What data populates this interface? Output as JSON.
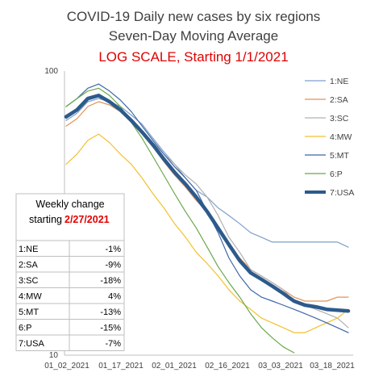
{
  "chart_data": {
    "type": "line",
    "title": "COVID-19 Daily new cases by six regions",
    "subtitle": "Seven-Day Moving Average",
    "subtitle2": "LOG SCALE, Starting 1/1/2021",
    "y_scale": "log",
    "ylim": [
      10,
      100
    ],
    "y_ticks": [
      "100",
      "10"
    ],
    "x_ticks": [
      "01_02_2021",
      "01_17_2021",
      "02_01_2021",
      "02_16_2021",
      "03_03_2021",
      "03_18_2021"
    ],
    "x_range_days": [
      0,
      78
    ],
    "grid": false,
    "legend_position": "right",
    "series": [
      {
        "name": "1:NE",
        "color": "#7f9fc9",
        "width": 1.2,
        "points": [
          [
            0,
            67
          ],
          [
            3,
            71
          ],
          [
            6,
            78
          ],
          [
            9,
            80
          ],
          [
            12,
            78
          ],
          [
            15,
            75
          ],
          [
            18,
            70
          ],
          [
            21,
            65
          ],
          [
            24,
            58
          ],
          [
            27,
            52
          ],
          [
            30,
            47
          ],
          [
            33,
            42
          ],
          [
            36,
            38
          ],
          [
            39,
            36
          ],
          [
            42,
            33
          ],
          [
            45,
            31
          ],
          [
            48,
            29
          ],
          [
            51,
            27
          ],
          [
            54,
            26
          ],
          [
            57,
            25
          ],
          [
            60,
            25
          ],
          [
            63,
            25
          ],
          [
            66,
            25
          ],
          [
            69,
            25
          ],
          [
            72,
            25
          ],
          [
            75,
            25
          ],
          [
            78,
            24
          ]
        ]
      },
      {
        "name": "2:SA",
        "color": "#e0925a",
        "width": 1.2,
        "points": [
          [
            0,
            64
          ],
          [
            3,
            68
          ],
          [
            6,
            75
          ],
          [
            9,
            78
          ],
          [
            12,
            76
          ],
          [
            15,
            72
          ],
          [
            18,
            66
          ],
          [
            21,
            60
          ],
          [
            24,
            54
          ],
          [
            27,
            48
          ],
          [
            30,
            43
          ],
          [
            33,
            39
          ],
          [
            36,
            35
          ],
          [
            39,
            32
          ],
          [
            42,
            28
          ],
          [
            45,
            24
          ],
          [
            48,
            22
          ],
          [
            51,
            20
          ],
          [
            54,
            19
          ],
          [
            57,
            18
          ],
          [
            60,
            17
          ],
          [
            63,
            16
          ],
          [
            66,
            15.5
          ],
          [
            69,
            15.5
          ],
          [
            72,
            15.5
          ],
          [
            75,
            16
          ],
          [
            78,
            16
          ]
        ]
      },
      {
        "name": "3:SC",
        "color": "#b0b0b0",
        "width": 1.2,
        "points": [
          [
            0,
            68
          ],
          [
            3,
            73
          ],
          [
            6,
            80
          ],
          [
            9,
            82
          ],
          [
            12,
            79
          ],
          [
            15,
            74
          ],
          [
            18,
            68
          ],
          [
            21,
            61
          ],
          [
            24,
            56
          ],
          [
            27,
            51
          ],
          [
            30,
            47
          ],
          [
            33,
            43
          ],
          [
            36,
            40
          ],
          [
            39,
            36
          ],
          [
            42,
            31
          ],
          [
            45,
            26
          ],
          [
            48,
            23
          ],
          [
            51,
            20
          ],
          [
            54,
            19
          ],
          [
            57,
            18
          ],
          [
            60,
            17
          ],
          [
            63,
            15.5
          ],
          [
            66,
            15
          ],
          [
            69,
            14.5
          ],
          [
            72,
            14
          ],
          [
            75,
            13.5
          ],
          [
            78,
            12.5
          ]
        ]
      },
      {
        "name": "4:MW",
        "color": "#f2c12e",
        "width": 1.2,
        "points": [
          [
            0,
            47
          ],
          [
            3,
            51
          ],
          [
            6,
            57
          ],
          [
            9,
            60
          ],
          [
            12,
            56
          ],
          [
            15,
            51
          ],
          [
            18,
            47
          ],
          [
            21,
            42
          ],
          [
            24,
            37
          ],
          [
            27,
            33
          ],
          [
            30,
            29
          ],
          [
            33,
            26
          ],
          [
            36,
            23
          ],
          [
            39,
            21
          ],
          [
            42,
            19
          ],
          [
            45,
            17
          ],
          [
            48,
            15.5
          ],
          [
            51,
            14.5
          ],
          [
            54,
            13.5
          ],
          [
            57,
            13
          ],
          [
            60,
            12.5
          ],
          [
            63,
            12
          ],
          [
            66,
            12
          ],
          [
            69,
            12.5
          ],
          [
            72,
            13
          ],
          [
            75,
            13.5
          ],
          [
            78,
            14.5
          ]
        ]
      },
      {
        "name": "5:MT",
        "color": "#3f66a8",
        "width": 1.2,
        "points": [
          [
            0,
            75
          ],
          [
            3,
            80
          ],
          [
            6,
            87
          ],
          [
            9,
            90
          ],
          [
            12,
            85
          ],
          [
            15,
            79
          ],
          [
            18,
            72
          ],
          [
            21,
            64
          ],
          [
            24,
            57
          ],
          [
            27,
            51
          ],
          [
            30,
            46
          ],
          [
            33,
            42
          ],
          [
            36,
            38
          ],
          [
            39,
            32
          ],
          [
            42,
            27
          ],
          [
            45,
            22
          ],
          [
            48,
            19
          ],
          [
            51,
            17
          ],
          [
            54,
            16
          ],
          [
            57,
            15.5
          ],
          [
            60,
            15
          ],
          [
            63,
            14.5
          ],
          [
            66,
            14
          ],
          [
            69,
            13.5
          ],
          [
            72,
            13
          ],
          [
            75,
            12.5
          ],
          [
            78,
            12
          ]
        ]
      },
      {
        "name": "6:P",
        "color": "#6ba84a",
        "width": 1.2,
        "points": [
          [
            0,
            75
          ],
          [
            3,
            80
          ],
          [
            6,
            85
          ],
          [
            9,
            87
          ],
          [
            12,
            82
          ],
          [
            15,
            75
          ],
          [
            18,
            66
          ],
          [
            21,
            58
          ],
          [
            24,
            50
          ],
          [
            27,
            43
          ],
          [
            30,
            37
          ],
          [
            33,
            32
          ],
          [
            36,
            28
          ],
          [
            39,
            24
          ],
          [
            42,
            20.5
          ],
          [
            45,
            18
          ],
          [
            48,
            16
          ],
          [
            51,
            14
          ],
          [
            54,
            12.5
          ],
          [
            57,
            11.5
          ],
          [
            60,
            10.7
          ],
          [
            63,
            10.2
          ],
          [
            66,
            9.8
          ],
          [
            69,
            9.5
          ],
          [
            72,
            9.3
          ],
          [
            75,
            9.2
          ],
          [
            78,
            9
          ]
        ]
      },
      {
        "name": "7:USA",
        "color": "#2c5a8c",
        "width": 4.5,
        "points": [
          [
            0,
            69
          ],
          [
            3,
            73
          ],
          [
            6,
            80
          ],
          [
            9,
            82
          ],
          [
            12,
            78
          ],
          [
            15,
            73
          ],
          [
            18,
            67
          ],
          [
            21,
            61
          ],
          [
            24,
            55
          ],
          [
            27,
            49
          ],
          [
            30,
            44
          ],
          [
            33,
            40
          ],
          [
            36,
            36
          ],
          [
            39,
            32
          ],
          [
            42,
            28
          ],
          [
            45,
            24.5
          ],
          [
            48,
            21.5
          ],
          [
            51,
            19.5
          ],
          [
            54,
            18.5
          ],
          [
            57,
            17.5
          ],
          [
            60,
            16.5
          ],
          [
            63,
            15.5
          ],
          [
            66,
            15
          ],
          [
            69,
            14.8
          ],
          [
            72,
            14.5
          ],
          [
            75,
            14.4
          ],
          [
            78,
            14.3
          ]
        ]
      }
    ]
  },
  "table": {
    "header_line1": "Weekly change",
    "header_line2_prefix": "starting",
    "header_date": "2/27/2021",
    "rows": [
      {
        "label": "1:NE",
        "value": "-1%"
      },
      {
        "label": "2:SA",
        "value": "-9%"
      },
      {
        "label": "3:SC",
        "value": "-18%"
      },
      {
        "label": "4:MW",
        "value": "4%"
      },
      {
        "label": "5:MT",
        "value": "-13%"
      },
      {
        "label": "6:P",
        "value": "-15%"
      },
      {
        "label": "7:USA",
        "value": "-7%"
      }
    ]
  }
}
